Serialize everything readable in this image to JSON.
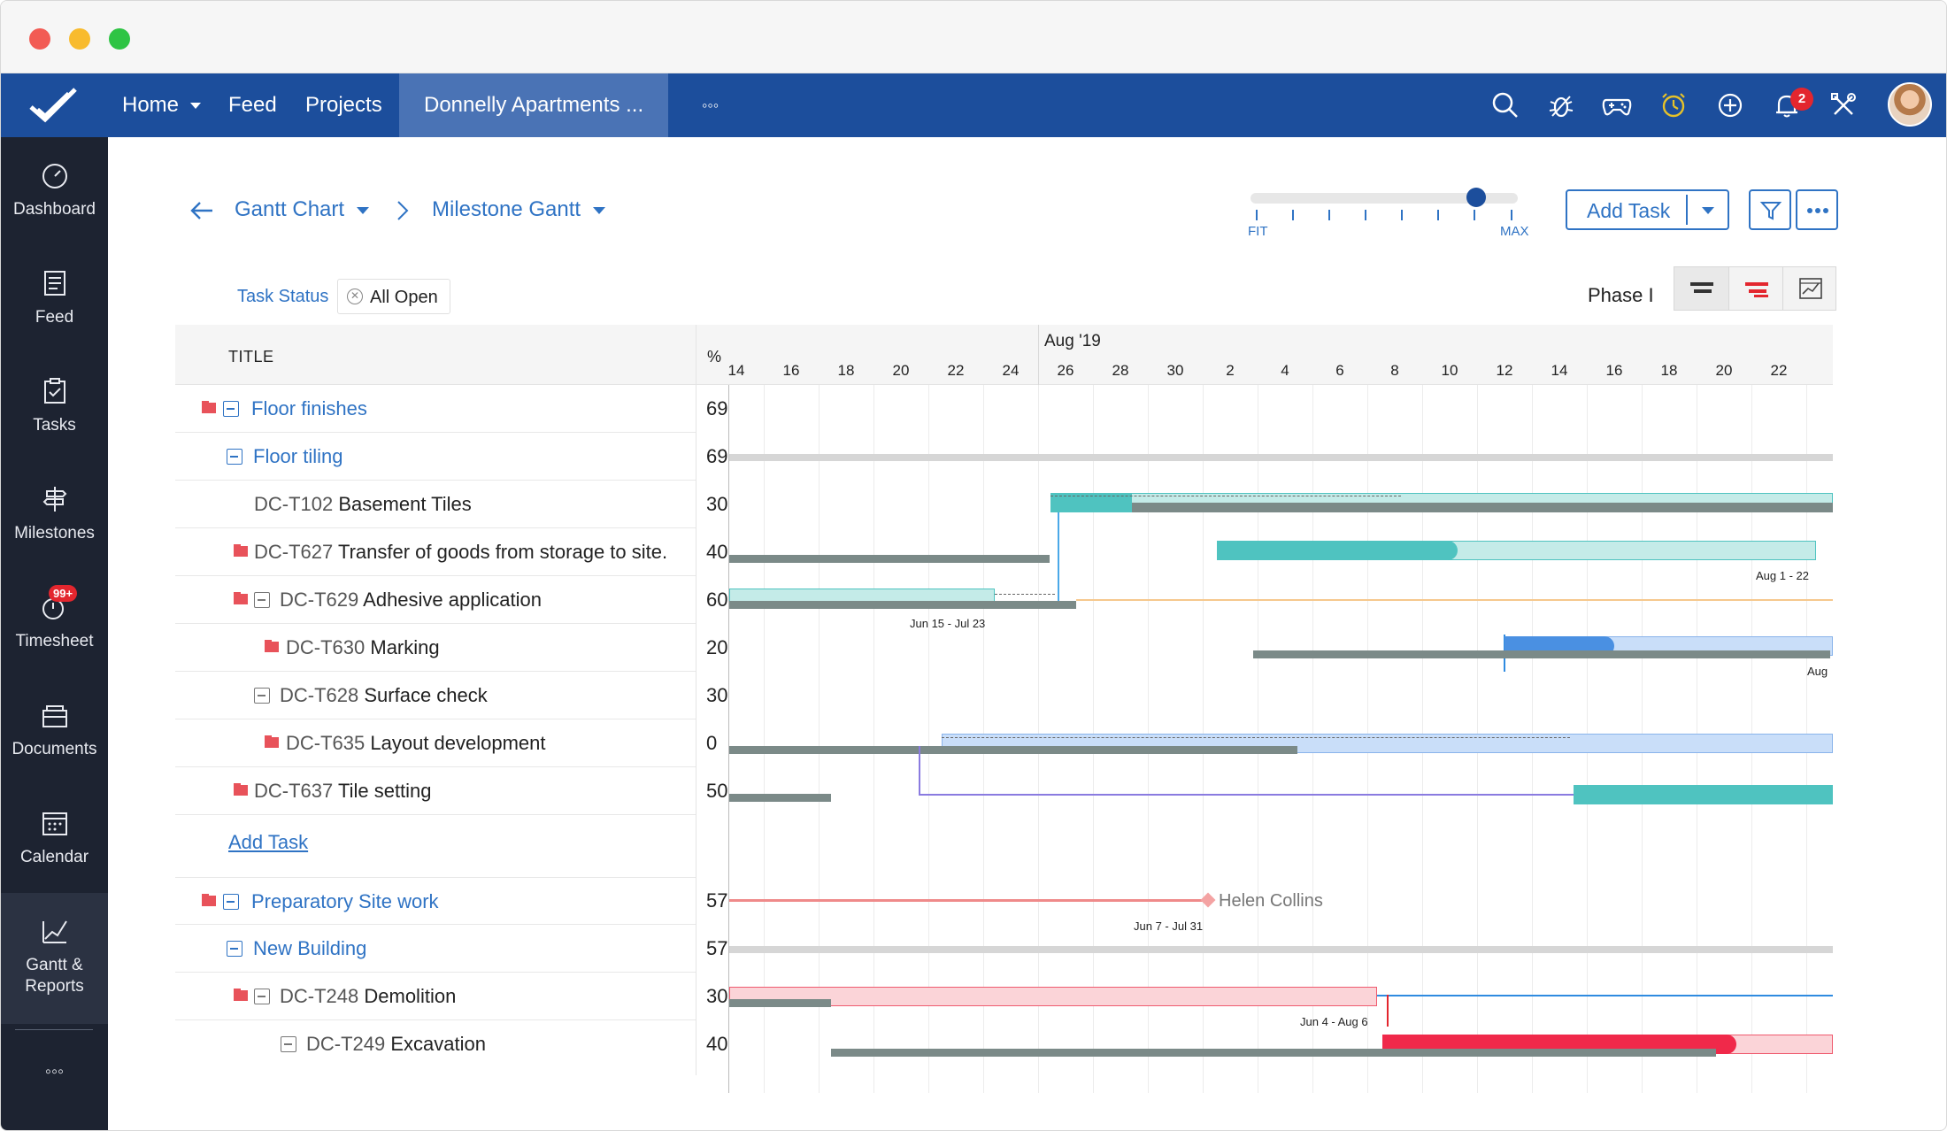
{
  "nav": {
    "home": "Home",
    "feed": "Feed",
    "projects": "Projects",
    "project": "Donnelly Apartments ...",
    "more": "◦◦◦",
    "notifications_count": "2"
  },
  "sidebar": {
    "items": [
      {
        "label": "Dashboard"
      },
      {
        "label": "Feed"
      },
      {
        "label": "Tasks"
      },
      {
        "label": "Milestones"
      },
      {
        "label": "Timesheet",
        "badge": "99+"
      },
      {
        "label": "Documents"
      },
      {
        "label": "Calendar"
      },
      {
        "label": "Gantt &\nReports"
      },
      {
        "label": "◦◦◦"
      }
    ]
  },
  "breadcrumb": {
    "view": "Gantt Chart",
    "subview": "Milestone Gantt"
  },
  "zoom": {
    "min_label": "FIT",
    "max_label": "MAX",
    "level": 0.85
  },
  "toolbar": {
    "add_task": "Add Task",
    "phase": "Phase I"
  },
  "filter": {
    "label": "Task Status",
    "value": "All Open"
  },
  "table": {
    "title_header": "TITLE",
    "pct_header": "%",
    "add_task": "Add Task",
    "rows": [
      {
        "code": "",
        "name": "Floor finishes",
        "pct": "69"
      },
      {
        "code": "",
        "name": "Floor tiling",
        "pct": "69"
      },
      {
        "code": "DC-T102",
        "name": "Basement Tiles",
        "pct": "30"
      },
      {
        "code": "DC-T627",
        "name": "Transfer of goods from storage to site.",
        "pct": "40"
      },
      {
        "code": "DC-T629",
        "name": "Adhesive application",
        "pct": "60"
      },
      {
        "code": "DC-T630",
        "name": "Marking",
        "pct": "20"
      },
      {
        "code": "DC-T628",
        "name": "Surface check",
        "pct": "30"
      },
      {
        "code": "DC-T635",
        "name": "Layout development",
        "pct": "0"
      },
      {
        "code": "DC-T637",
        "name": "Tile setting",
        "pct": "50"
      },
      {
        "code": "",
        "name": "Preparatory Site work",
        "pct": "57"
      },
      {
        "code": "",
        "name": "New Building",
        "pct": "57"
      },
      {
        "code": "DC-T248",
        "name": "Demolition",
        "pct": "30"
      },
      {
        "code": "DC-T249",
        "name": "Excavation",
        "pct": "40"
      }
    ]
  },
  "timeline": {
    "month_label": "Aug '19",
    "days": [
      "14",
      "16",
      "18",
      "20",
      "22",
      "24",
      "26",
      "28",
      "30",
      "2",
      "4",
      "6",
      "8",
      "10",
      "12",
      "14",
      "16",
      "18",
      "20",
      "22"
    ],
    "labels": {
      "t627": "Aug 1 - 22",
      "t629": "Jun 15 - Jul 23",
      "t630": "Aug",
      "prep": "Jun 7 - Jul 31",
      "prep_owner": "Helen Collins",
      "t248": "Jun 4 - Aug 6"
    }
  },
  "colors": {
    "nav_bg": "#1c4e9c",
    "sidebar_bg": "#1d2331",
    "link": "#2f73c4",
    "teal": "#4fc3c0",
    "blue_bar": "#4a90e2",
    "red_bar": "#f0294a",
    "flag": "#e8525a"
  }
}
